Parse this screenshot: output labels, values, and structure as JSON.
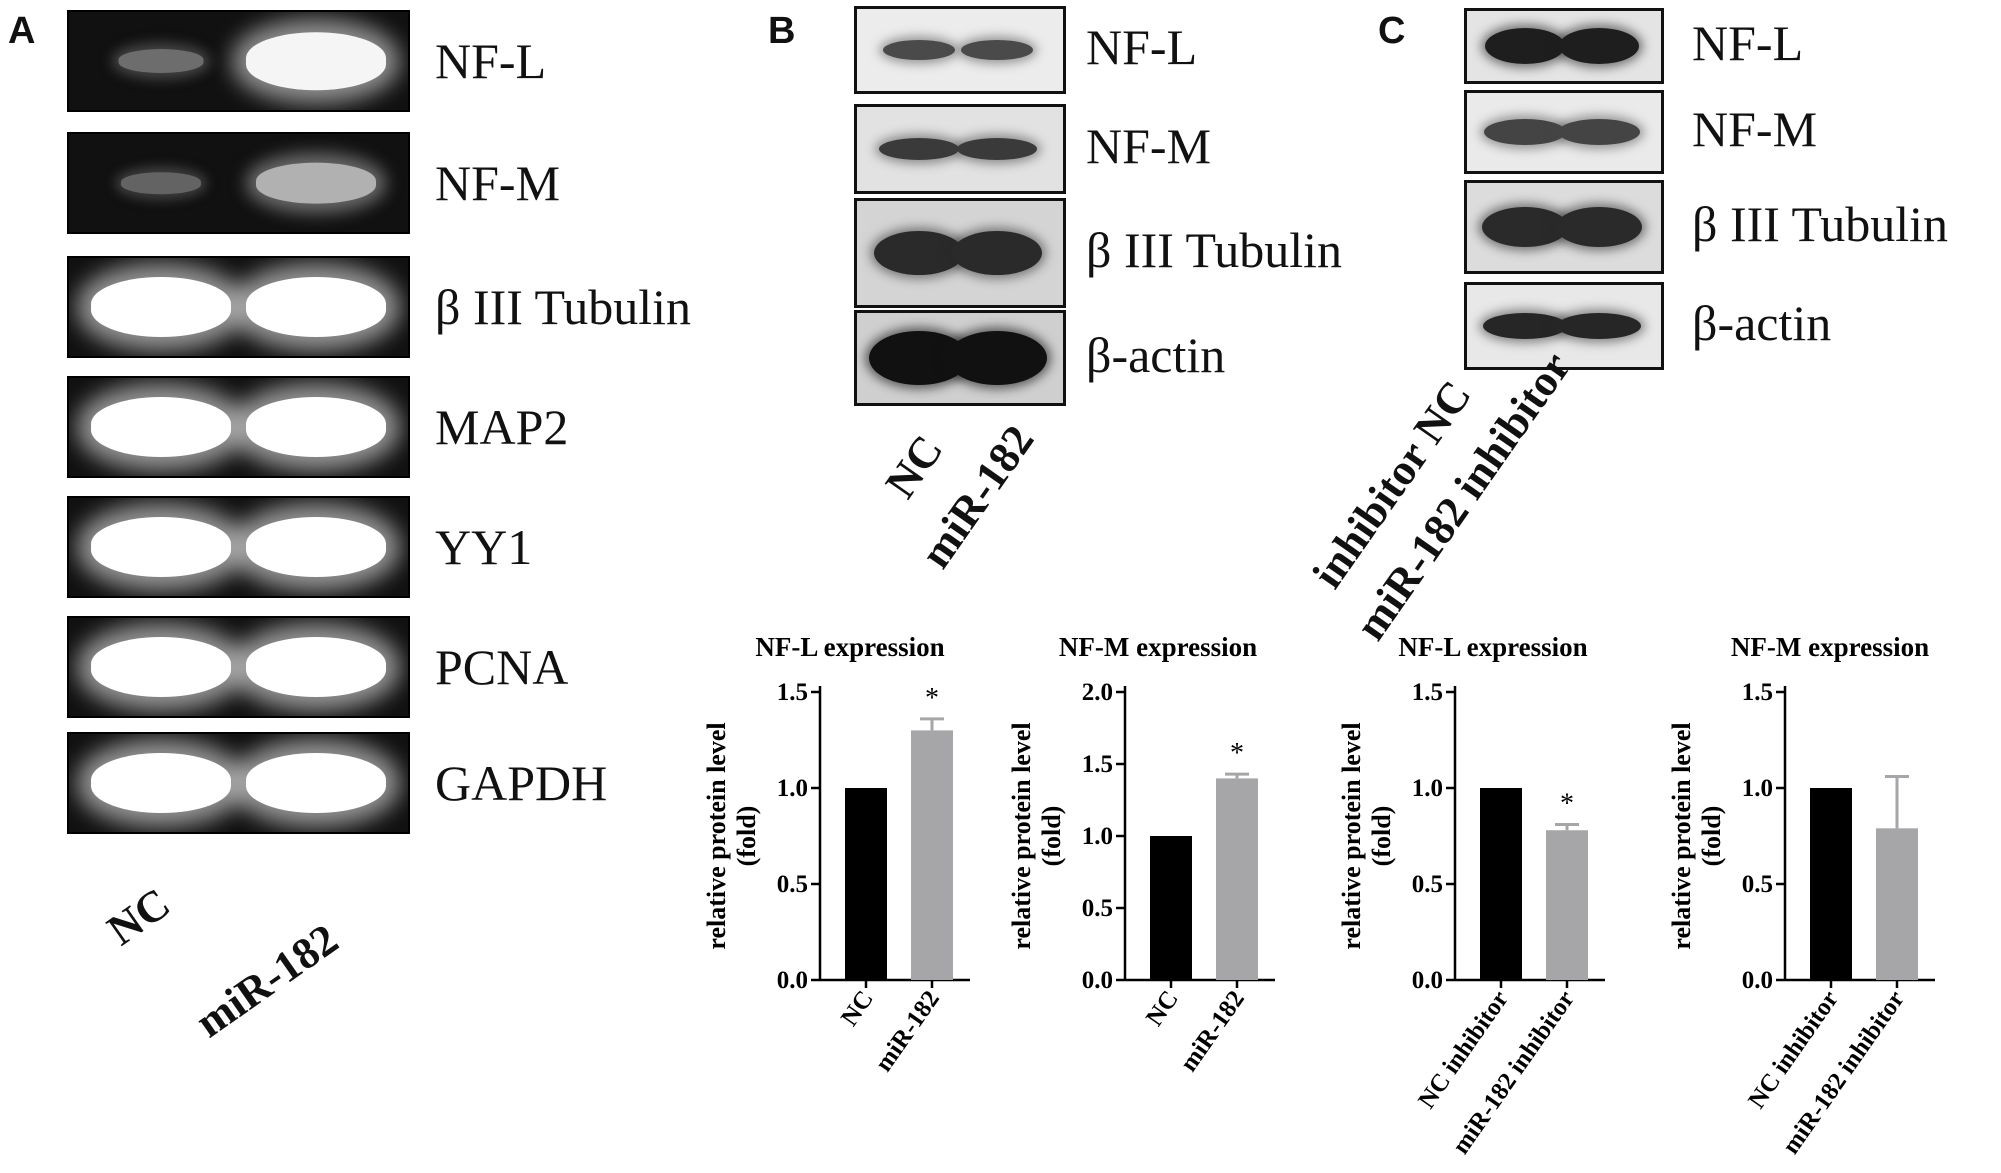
{
  "panels": {
    "A": {
      "letter": "A",
      "rows": [
        {
          "label": "NF-L",
          "nc": 0.25,
          "mir": 0.95
        },
        {
          "label": "NF-M",
          "nc": 0.2,
          "mir": 0.6
        },
        {
          "label": "β III Tubulin",
          "nc": 1,
          "mir": 1
        },
        {
          "label": "MAP2",
          "nc": 1,
          "mir": 1
        },
        {
          "label": "YY1",
          "nc": 1,
          "mir": 1
        },
        {
          "label": "PCNA",
          "nc": 1,
          "mir": 1
        },
        {
          "label": "GAPDH",
          "nc": 1,
          "mir": 1
        }
      ],
      "lanes": [
        "NC",
        "miR-182"
      ]
    },
    "B": {
      "letter": "B",
      "rows": [
        "NF-L",
        "NF-M",
        "β III Tubulin",
        "β-actin"
      ],
      "lanes": [
        "NC",
        "miR-182"
      ]
    },
    "C": {
      "letter": "C",
      "rows": [
        "NF-L",
        "NF-M",
        "β III Tubulin",
        "β-actin"
      ],
      "lanes": [
        "inhibitor NC",
        "miR-182 inhibitor"
      ]
    }
  },
  "chart_data": [
    {
      "type": "bar",
      "title": "NF-L expression",
      "ylabel": "relative protein level (fold)",
      "ylabel_lines": [
        "relative protein level",
        "(fold)"
      ],
      "categories": [
        "NC",
        "miR-182"
      ],
      "values": [
        1.0,
        1.3
      ],
      "errors": [
        0,
        0.06
      ],
      "colors": [
        "#000000",
        "#a6a6a8"
      ],
      "significance": [
        "",
        "*"
      ],
      "ylim": [
        0,
        1.5
      ],
      "yticks": [
        "0.0",
        "0.5",
        "1.0",
        "1.5"
      ],
      "ytick_values": [
        0,
        0.5,
        1.0,
        1.5
      ]
    },
    {
      "type": "bar",
      "title": "NF-M expression",
      "ylabel": "relative protein level (fold)",
      "ylabel_lines": [
        "relative protein level",
        "(fold)"
      ],
      "categories": [
        "NC",
        "miR-182"
      ],
      "values": [
        1.0,
        1.4
      ],
      "errors": [
        0,
        0.03
      ],
      "colors": [
        "#000000",
        "#a6a6a8"
      ],
      "significance": [
        "",
        "*"
      ],
      "ylim": [
        0,
        2.0
      ],
      "yticks": [
        "0.0",
        "0.5",
        "1.0",
        "1.5",
        "2.0"
      ],
      "ytick_values": [
        0,
        0.5,
        1.0,
        1.5,
        2.0
      ]
    },
    {
      "type": "bar",
      "title": "NF-L expression",
      "ylabel": "relative protein level (fold)",
      "ylabel_lines": [
        "relative protein level",
        "(fold)"
      ],
      "categories": [
        "NC inhibitor",
        "miR-182 inhibitor"
      ],
      "values": [
        1.0,
        0.78
      ],
      "errors": [
        0,
        0.03
      ],
      "colors": [
        "#000000",
        "#a6a6a8"
      ],
      "significance": [
        "",
        "*"
      ],
      "ylim": [
        0,
        1.5
      ],
      "yticks": [
        "0.0",
        "0.5",
        "1.0",
        "1.5"
      ],
      "ytick_values": [
        0,
        0.5,
        1.0,
        1.5
      ]
    },
    {
      "type": "bar",
      "title": "NF-M expression",
      "ylabel": "relative protein level (fold)",
      "ylabel_lines": [
        "relative protein level",
        "(fold)"
      ],
      "categories": [
        "NC inhibitor",
        "miR-182 inhibitor"
      ],
      "values": [
        1.0,
        0.79
      ],
      "errors": [
        0,
        0.27
      ],
      "colors": [
        "#000000",
        "#a6a6a8"
      ],
      "significance": [
        "",
        ""
      ],
      "ylim": [
        0,
        1.5
      ],
      "yticks": [
        "0.0",
        "0.5",
        "1.0",
        "1.5"
      ],
      "ytick_values": [
        0,
        0.5,
        1.0,
        1.5
      ]
    }
  ]
}
